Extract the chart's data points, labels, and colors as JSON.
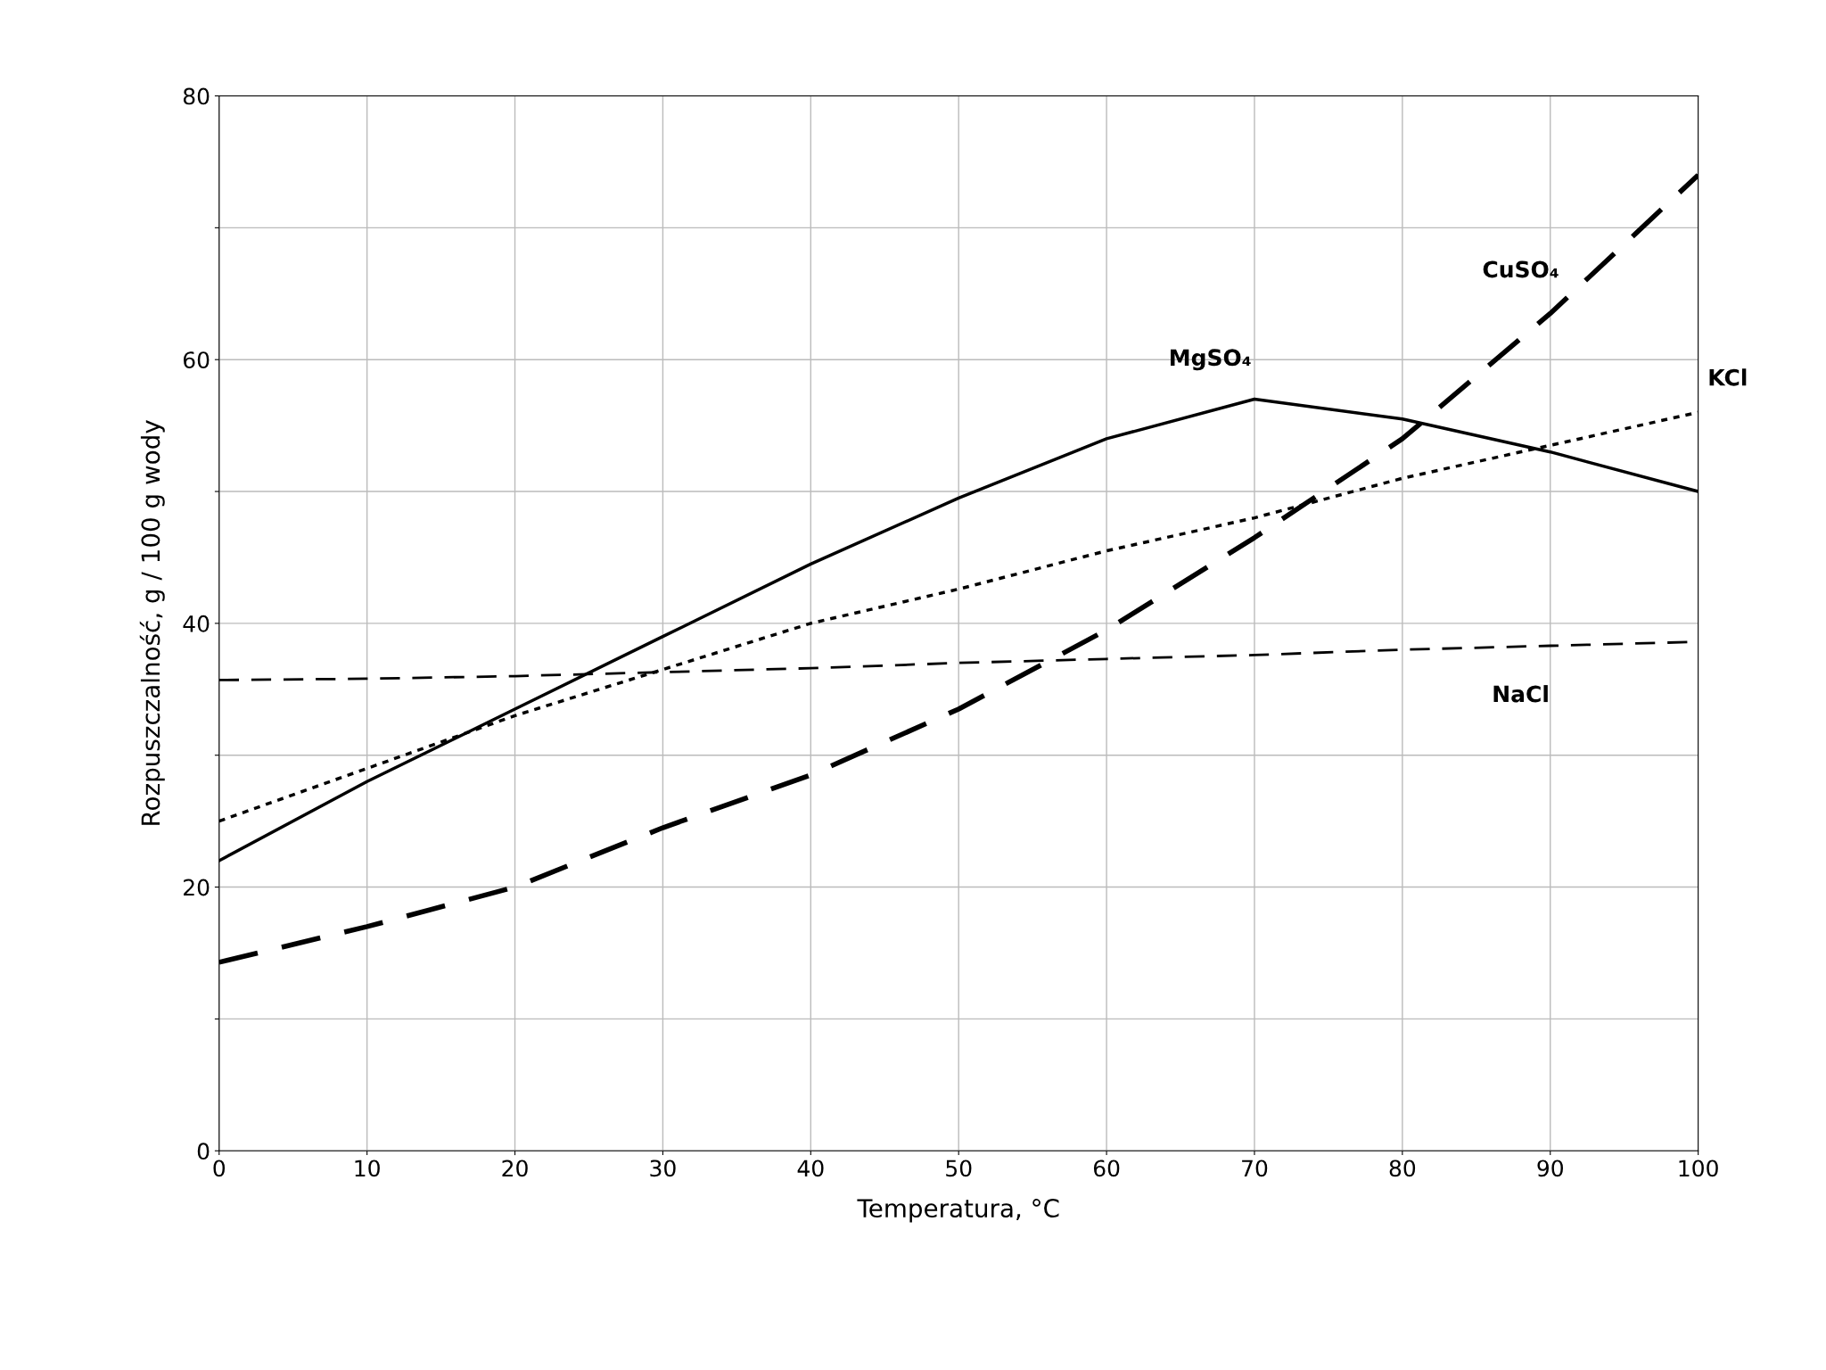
{
  "chart_data": {
    "type": "line",
    "xlabel": "Temperatura, °C",
    "ylabel": "Rozpuszczalność, g / 100 g wody",
    "x": [
      0,
      10,
      20,
      30,
      40,
      50,
      60,
      70,
      80,
      90,
      100
    ],
    "series": [
      {
        "name": "NaCl",
        "color": "#000000",
        "line_style": "dashed",
        "values": [
          35.7,
          35.8,
          36.0,
          36.3,
          36.6,
          37.0,
          37.3,
          37.6,
          38.0,
          38.3,
          38.6
        ]
      },
      {
        "name": "KCl",
        "color": "#000000",
        "line_style": "dotted",
        "values": [
          25,
          29,
          33,
          36.5,
          40,
          42.6,
          45.5,
          48,
          51,
          53.5,
          56
        ]
      },
      {
        "name": "MgSO₄",
        "color": "#000000",
        "line_style": "solid",
        "values": [
          22,
          28,
          33.5,
          39,
          44.5,
          49.5,
          54,
          57,
          55.5,
          53,
          50
        ]
      },
      {
        "name": "CuSO₄",
        "color": "#000000",
        "line_style": "dashed",
        "values": [
          14.3,
          17,
          20,
          24.5,
          28.5,
          33.5,
          39.5,
          46.5,
          54,
          63.5,
          74
        ]
      }
    ],
    "xlim": [
      0,
      100
    ],
    "xticks": [
      0,
      10,
      20,
      30,
      40,
      50,
      60,
      70,
      80,
      90,
      100
    ],
    "ylim": [
      0,
      80
    ],
    "yticks": [
      0,
      {
        "value": 10,
        "label": null
      },
      20,
      {
        "value": 30,
        "label": null
      },
      40,
      {
        "value": 50,
        "label": null
      },
      60,
      {
        "value": 70,
        "label": null
      },
      80
    ],
    "grid": true,
    "legend": false
  }
}
